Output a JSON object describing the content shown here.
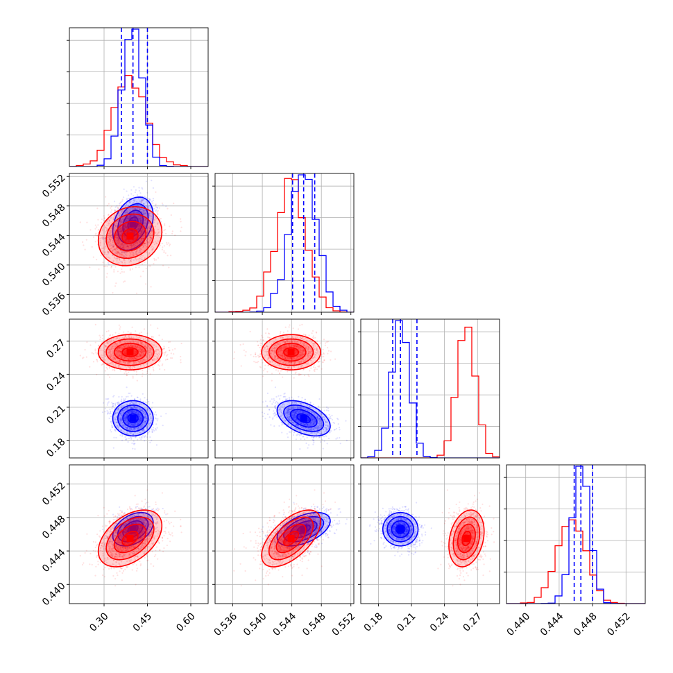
{
  "chart_data": {
    "type": "corner",
    "description_colors": {
      "sample_a": "#0000ff",
      "sample_b": "#ff0000"
    },
    "grid": true,
    "parameters": [
      {
        "range": [
          0.18,
          0.66
        ],
        "ticks": [
          0.3,
          0.45,
          0.6
        ],
        "tick_labels": [
          "0.30",
          "0.45",
          "0.60"
        ]
      },
      {
        "range": [
          0.5336,
          0.5524
        ],
        "ticks": [
          0.536,
          0.54,
          0.544,
          0.548,
          0.552
        ],
        "tick_labels": [
          "0.536",
          "0.540",
          "0.544",
          "0.548",
          "0.552"
        ]
      },
      {
        "range": [
          0.164,
          0.29
        ],
        "ticks": [
          0.18,
          0.21,
          0.24,
          0.27
        ],
        "tick_labels": [
          "0.18",
          "0.21",
          "0.24",
          "0.27"
        ]
      },
      {
        "range": [
          0.4377,
          0.4543
        ],
        "ticks": [
          0.44,
          0.444,
          0.448,
          0.452
        ],
        "tick_labels": [
          "0.440",
          "0.444",
          "0.448",
          "0.452"
        ]
      }
    ],
    "series": [
      {
        "color": "#0000ff",
        "medians": [
          0.4,
          0.5456,
          0.2,
          0.4466
        ],
        "quantiles_16_84": [
          [
            0.36,
            0.45
          ],
          [
            0.5441,
            0.5471
          ],
          [
            0.193,
            0.215
          ],
          [
            0.4458,
            0.448
          ]
        ],
        "sigmas": [
          0.035,
          0.0018,
          0.008,
          0.001
        ],
        "correlations": {
          "0-1": 0.3,
          "0-2": 0.0,
          "0-3": 0.4,
          "1-2": -0.45,
          "1-3": 0.5,
          "2-3": 0.0
        }
      },
      {
        "color": "#ff0000",
        "medians": [
          0.39,
          0.5439,
          0.26,
          0.4455
        ],
        "sigmas": [
          0.055,
          0.002,
          0.008,
          0.0017
        ],
        "correlations": {
          "0-1": 0.15,
          "0-2": 0.0,
          "0-3": 0.45,
          "1-2": 0.0,
          "1-3": 0.6,
          "2-3": 0.25
        }
      }
    ],
    "histogram_bins": 20,
    "contour_levels_sigma": [
      0.5,
      1.0,
      1.5,
      2.0
    ]
  }
}
